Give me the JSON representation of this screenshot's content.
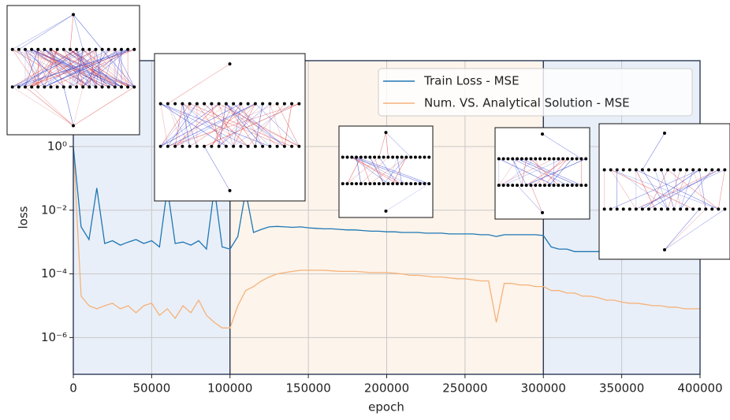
{
  "chart_data": {
    "type": "line",
    "xlabel": "epoch",
    "ylabel": "loss",
    "x": [
      0,
      5000,
      10000,
      15000,
      20000,
      25000,
      30000,
      35000,
      40000,
      45000,
      50000,
      55000,
      60000,
      65000,
      70000,
      75000,
      80000,
      85000,
      90000,
      95000,
      100000,
      105000,
      110000,
      115000,
      120000,
      125000,
      130000,
      135000,
      140000,
      145000,
      150000,
      155000,
      160000,
      165000,
      170000,
      175000,
      180000,
      185000,
      190000,
      195000,
      200000,
      205000,
      210000,
      215000,
      220000,
      225000,
      230000,
      235000,
      240000,
      245000,
      250000,
      255000,
      260000,
      265000,
      270000,
      275000,
      280000,
      285000,
      290000,
      295000,
      300000,
      305000,
      310000,
      315000,
      320000,
      325000,
      330000,
      335000,
      340000,
      345000,
      350000,
      355000,
      360000,
      365000,
      370000,
      375000,
      380000,
      385000,
      390000,
      395000,
      400000
    ],
    "series": [
      {
        "name": "Train Loss - MSE",
        "color": "#1f77b4",
        "values": [
          1.0,
          0.003,
          0.0012,
          0.05,
          0.0009,
          0.0011,
          0.0008,
          0.001,
          0.0012,
          0.0009,
          0.0011,
          0.0007,
          0.05,
          0.0009,
          0.001,
          0.0008,
          0.0011,
          0.0006,
          0.05,
          0.0007,
          0.0006,
          0.0015,
          0.04,
          0.002,
          0.0025,
          0.003,
          0.0031,
          0.003,
          0.0029,
          0.003,
          0.0028,
          0.0027,
          0.0026,
          0.0026,
          0.0025,
          0.0024,
          0.0024,
          0.0023,
          0.0022,
          0.0022,
          0.0021,
          0.0021,
          0.002,
          0.002,
          0.002,
          0.0019,
          0.0019,
          0.0019,
          0.0018,
          0.0018,
          0.0018,
          0.0018,
          0.0017,
          0.0017,
          0.0015,
          0.0017,
          0.0017,
          0.0017,
          0.0017,
          0.0017,
          0.0016,
          0.0007,
          0.0006,
          0.0006,
          0.0005,
          0.0005,
          0.0005,
          0.0005,
          0.0005,
          0.0005,
          0.0005,
          0.0005,
          0.0005,
          0.0005,
          0.0006,
          0.0006,
          0.0006,
          0.0007,
          0.0007,
          0.0008,
          0.0008
        ]
      },
      {
        "name": "Num. VS. Analytical Solution - MSE",
        "color": "#f5b27a",
        "values": [
          1.0,
          2e-05,
          1e-05,
          8e-06,
          1e-05,
          1.2e-05,
          8e-06,
          1e-05,
          6e-06,
          1e-05,
          1.2e-05,
          5e-06,
          8e-06,
          4e-06,
          1e-05,
          6e-06,
          1.5e-05,
          5e-06,
          3e-06,
          2e-06,
          2e-06,
          1e-05,
          3e-05,
          4e-05,
          6e-05,
          8e-05,
          0.0001,
          0.00011,
          0.00012,
          0.00013,
          0.00013,
          0.00013,
          0.00013,
          0.000125,
          0.00012,
          0.00012,
          0.00012,
          0.000115,
          0.00011,
          0.00011,
          0.00011,
          0.000105,
          0.0001,
          9e-05,
          9e-05,
          8.5e-05,
          8e-05,
          8e-05,
          7.5e-05,
          7e-05,
          7e-05,
          6.5e-05,
          6e-05,
          6e-05,
          3e-06,
          5e-05,
          5e-05,
          4.5e-05,
          4.5e-05,
          4e-05,
          4e-05,
          3e-05,
          3e-05,
          2.5e-05,
          2.5e-05,
          2e-05,
          2e-05,
          1.8e-05,
          1.5e-05,
          1.5e-05,
          1.3e-05,
          1.2e-05,
          1.2e-05,
          1.1e-05,
          1e-05,
          1e-05,
          9e-06,
          9e-06,
          8e-06,
          8e-06,
          8e-06
        ]
      }
    ],
    "regions": [
      {
        "start": 0,
        "end": 100000,
        "color": "#e9eff8"
      },
      {
        "start": 100000,
        "end": 300000,
        "color": "#fdf4eb"
      },
      {
        "start": 300000,
        "end": 400000,
        "color": "#e9eff8"
      }
    ],
    "xlim": [
      0,
      400000
    ],
    "xticks": [
      0,
      50000,
      100000,
      150000,
      200000,
      250000,
      300000,
      350000,
      400000
    ],
    "ylim": [
      7e-08,
      500
    ],
    "yticks": [
      {
        "value": 1,
        "label": "10⁰"
      },
      {
        "value": 0.01,
        "label": "10⁻²"
      },
      {
        "value": 0.0001,
        "label": "10⁻⁴"
      },
      {
        "value": 1e-06,
        "label": "10⁻⁶"
      }
    ],
    "log_y": true,
    "grid": true,
    "legend": "upper right"
  }
}
